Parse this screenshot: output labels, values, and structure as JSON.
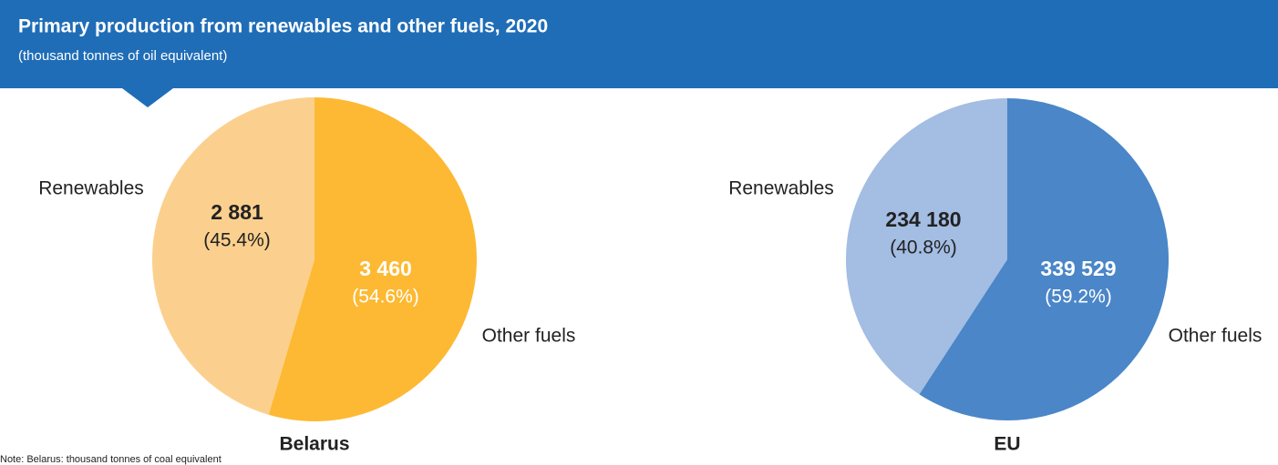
{
  "title": "Primary production from renewables and other fuels,  2020",
  "subtitle": "(thousand tonnes of oil equivalent)",
  "note": "Note: Belarus: thousand tonnes of coal equivalent",
  "chart_data": [
    {
      "type": "pie",
      "title": "Belarus",
      "categories": [
        "Renewables",
        "Other fuels"
      ],
      "values": [
        2881,
        3460
      ],
      "value_labels": [
        "2 881",
        "3 460"
      ],
      "share_labels": [
        "(45.4%)",
        "(54.6%)"
      ],
      "colors": [
        "#fbd08e",
        "#fdb933"
      ]
    },
    {
      "type": "pie",
      "title": "EU",
      "categories": [
        "Renewables",
        "Other fuels"
      ],
      "values": [
        234180,
        339529
      ],
      "value_labels": [
        "234 180",
        "339 529"
      ],
      "share_labels": [
        "(40.8%)",
        "(59.2%)"
      ],
      "colors": [
        "#a3bde3",
        "#4a86c8"
      ]
    }
  ]
}
